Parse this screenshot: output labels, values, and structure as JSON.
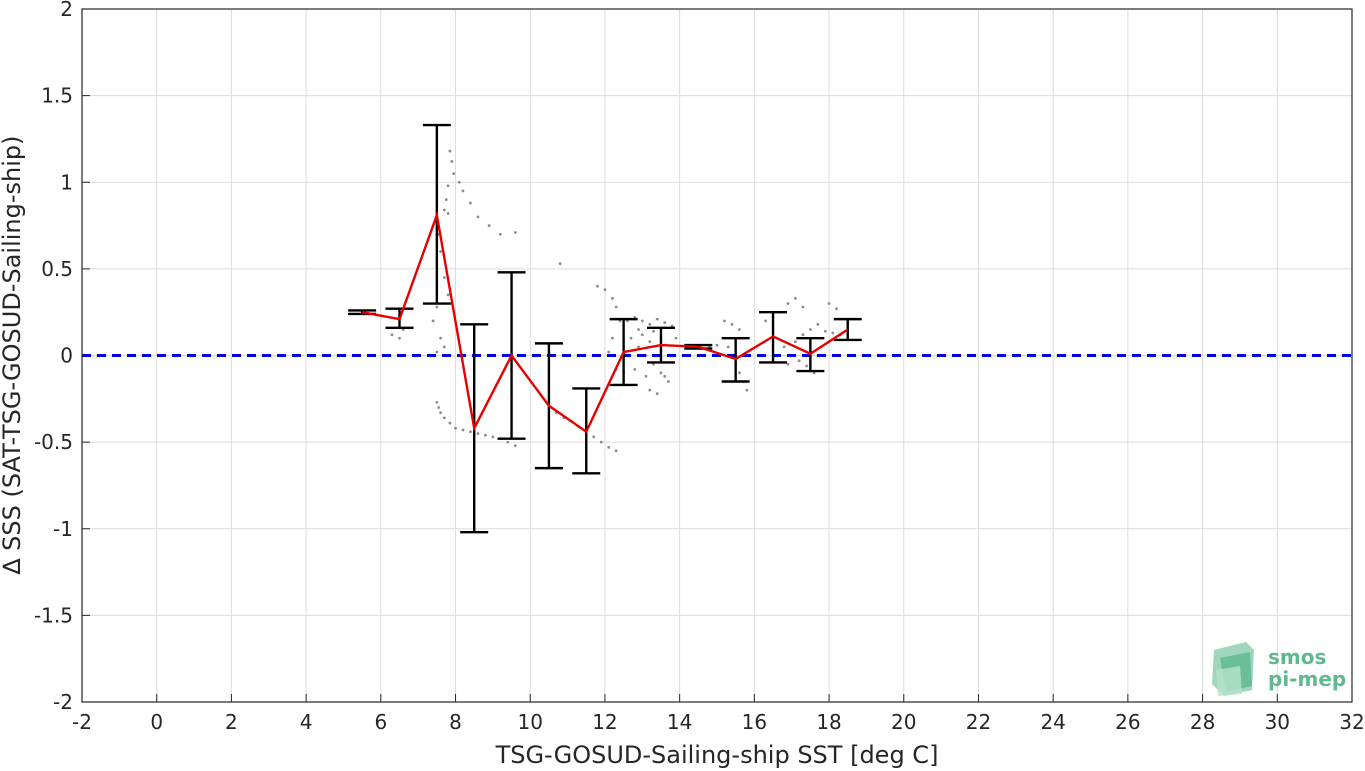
{
  "chart_data": {
    "type": "scatter",
    "xlabel": "TSG-GOSUD-Sailing-ship SST [deg C]",
    "ylabel": "∆ SSS (SAT-TSG-GOSUD-Sailing-ship)",
    "xlim": [
      -2,
      32
    ],
    "ylim": [
      -2,
      2
    ],
    "x_ticks": [
      -2,
      0,
      2,
      4,
      6,
      8,
      10,
      12,
      14,
      16,
      18,
      20,
      22,
      24,
      26,
      28,
      30,
      32
    ],
    "y_ticks": [
      -2,
      -1.5,
      -1,
      -0.5,
      0,
      0.5,
      1,
      1.5,
      2
    ],
    "y_tick_labels": [
      "-2",
      "-1.5",
      "-1",
      "-0.5",
      "0",
      "0.5",
      "1",
      "1.5",
      "2"
    ],
    "grid": true,
    "reference_line": {
      "y": 0,
      "color": "#0000e6",
      "style": "dashed"
    },
    "mean_line": {
      "color": "#e60000",
      "x": [
        5.5,
        6.5,
        7.5,
        8.5,
        9.5,
        10.5,
        11.5,
        12.5,
        13.5,
        14.5,
        15.5,
        16.5,
        17.5,
        18.5
      ],
      "y": [
        0.25,
        0.21,
        0.81,
        -0.42,
        0.0,
        -0.29,
        -0.44,
        0.02,
        0.06,
        0.05,
        -0.02,
        0.11,
        0.01,
        0.15
      ]
    },
    "error_bars": {
      "color": "#000000",
      "x": [
        5.5,
        6.5,
        7.5,
        8.5,
        9.5,
        10.5,
        11.5,
        12.5,
        13.5,
        14.5,
        15.5,
        16.5,
        17.5,
        18.5
      ],
      "upper": [
        0.26,
        0.27,
        1.33,
        0.18,
        0.48,
        0.07,
        -0.19,
        0.21,
        0.16,
        0.06,
        0.1,
        0.25,
        0.1,
        0.21
      ],
      "lower": [
        0.24,
        0.16,
        0.3,
        -1.02,
        -0.48,
        -0.65,
        -0.68,
        -0.17,
        -0.04,
        0.04,
        -0.15,
        -0.04,
        -0.09,
        0.09
      ]
    },
    "scatter_color": "#8c8c8c",
    "scatter": [
      [
        7.85,
        1.18
      ],
      [
        7.9,
        1.12
      ],
      [
        7.95,
        1.05
      ],
      [
        7.8,
        0.98
      ],
      [
        7.75,
        0.9
      ],
      [
        7.7,
        0.84
      ],
      [
        7.8,
        0.82
      ],
      [
        8.1,
        1.0
      ],
      [
        8.2,
        0.95
      ],
      [
        8.4,
        0.88
      ],
      [
        8.6,
        0.8
      ],
      [
        8.9,
        0.75
      ],
      [
        9.2,
        0.7
      ],
      [
        9.6,
        0.71
      ],
      [
        10.8,
        0.53
      ],
      [
        7.55,
        0.7
      ],
      [
        7.6,
        0.6
      ],
      [
        7.7,
        0.45
      ],
      [
        7.8,
        0.35
      ],
      [
        7.9,
        0.3
      ],
      [
        7.5,
        0.28
      ],
      [
        7.4,
        0.2
      ],
      [
        7.6,
        0.1
      ],
      [
        7.7,
        0.05
      ],
      [
        7.5,
        0.02
      ],
      [
        7.4,
        0.0
      ],
      [
        6.6,
        0.15
      ],
      [
        6.3,
        0.12
      ],
      [
        6.5,
        0.1
      ],
      [
        7.5,
        -0.27
      ],
      [
        7.55,
        -0.3
      ],
      [
        7.6,
        -0.33
      ],
      [
        7.7,
        -0.36
      ],
      [
        7.85,
        -0.39
      ],
      [
        8.0,
        -0.42
      ],
      [
        8.2,
        -0.43
      ],
      [
        8.4,
        -0.44
      ],
      [
        8.6,
        -0.45
      ],
      [
        8.8,
        -0.46
      ],
      [
        9.0,
        -0.47
      ],
      [
        9.2,
        -0.48
      ],
      [
        9.4,
        -0.5
      ],
      [
        9.6,
        -0.52
      ],
      [
        10.5,
        -0.3
      ],
      [
        10.7,
        -0.33
      ],
      [
        10.9,
        -0.36
      ],
      [
        11.1,
        -0.38
      ],
      [
        11.3,
        -0.41
      ],
      [
        11.5,
        -0.44
      ],
      [
        11.7,
        -0.47
      ],
      [
        11.9,
        -0.5
      ],
      [
        12.1,
        -0.53
      ],
      [
        12.3,
        -0.55
      ],
      [
        11.8,
        0.4
      ],
      [
        12.0,
        0.38
      ],
      [
        12.2,
        0.33
      ],
      [
        12.3,
        0.28
      ],
      [
        12.4,
        0.2
      ],
      [
        12.2,
        0.1
      ],
      [
        12.1,
        0.02
      ],
      [
        12.3,
        -0.08
      ],
      [
        12.5,
        -0.1
      ],
      [
        12.6,
        0.2
      ],
      [
        12.8,
        0.22
      ],
      [
        13.0,
        0.2
      ],
      [
        13.2,
        0.18
      ],
      [
        13.4,
        0.21
      ],
      [
        13.6,
        0.19
      ],
      [
        13.8,
        0.17
      ],
      [
        12.7,
        0.1
      ],
      [
        12.9,
        0.05
      ],
      [
        13.1,
        0.0
      ],
      [
        13.3,
        -0.05
      ],
      [
        13.5,
        -0.1
      ],
      [
        13.7,
        -0.15
      ],
      [
        13.2,
        -0.2
      ],
      [
        13.4,
        -0.22
      ],
      [
        13.6,
        -0.12
      ],
      [
        13.0,
        0.12
      ],
      [
        13.2,
        0.08
      ],
      [
        13.5,
        0.03
      ],
      [
        13.8,
        0.0
      ],
      [
        12.8,
        -0.08
      ],
      [
        13.1,
        -0.12
      ],
      [
        13.9,
        0.1
      ],
      [
        13.6,
        0.06
      ],
      [
        13.3,
        0.14
      ],
      [
        12.9,
        0.15
      ],
      [
        14.2,
        0.05
      ],
      [
        14.4,
        0.06
      ],
      [
        14.6,
        0.04
      ],
      [
        14.8,
        0.05
      ],
      [
        15.0,
        0.06
      ],
      [
        15.2,
        0.2
      ],
      [
        15.4,
        0.18
      ],
      [
        15.6,
        0.15
      ],
      [
        15.3,
        0.05
      ],
      [
        15.5,
        -0.05
      ],
      [
        15.6,
        -0.1
      ],
      [
        15.7,
        -0.15
      ],
      [
        15.8,
        -0.2
      ],
      [
        15.4,
        0.0
      ],
      [
        15.6,
        0.1
      ],
      [
        16.3,
        0.2
      ],
      [
        16.5,
        0.22
      ],
      [
        16.7,
        0.25
      ],
      [
        16.9,
        0.3
      ],
      [
        17.1,
        0.33
      ],
      [
        17.3,
        0.28
      ],
      [
        16.6,
        0.1
      ],
      [
        16.8,
        0.05
      ],
      [
        17.0,
        0.0
      ],
      [
        17.2,
        -0.03
      ],
      [
        17.4,
        -0.06
      ],
      [
        17.6,
        -0.1
      ],
      [
        16.9,
        -0.05
      ],
      [
        17.1,
        0.08
      ],
      [
        17.3,
        0.12
      ],
      [
        17.5,
        0.15
      ],
      [
        17.7,
        0.18
      ],
      [
        17.9,
        0.14
      ],
      [
        18.1,
        0.13
      ],
      [
        18.3,
        0.12
      ],
      [
        18.0,
        0.3
      ],
      [
        18.2,
        0.27
      ]
    ]
  },
  "watermark": {
    "line1": "smos",
    "line2": "pi-mep",
    "color": "#5fb88f"
  }
}
